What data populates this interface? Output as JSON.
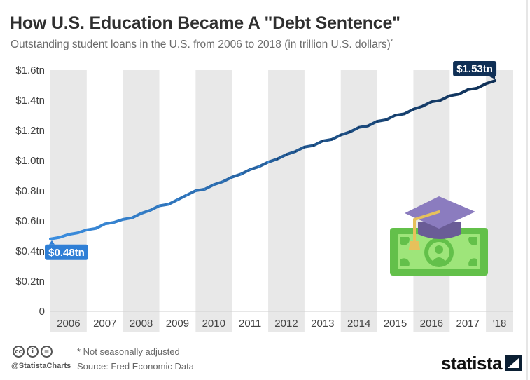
{
  "title": "How U.S. Education Became A \"Debt Sentence\"",
  "subtitle": "Outstanding student loans in the U.S. from 2006 to 2018 (in trillion U.S. dollars)",
  "subtitle_mark": "*",
  "footer": {
    "handle": "@StatistaCharts",
    "note": "* Not seasonally adjusted",
    "source": "Source: Fred Economic Data",
    "brand": "statista",
    "license_icons": [
      "cc",
      "i",
      "="
    ]
  },
  "colors": {
    "line_start": "#3b8ee0",
    "line_end": "#0f2f55",
    "band": "#e8e8e8",
    "label_start_bg": "#2f7fd6",
    "label_end_bg": "#0f2f55",
    "axis_text": "#444444"
  },
  "chart_data": {
    "type": "line",
    "title": "How U.S. Education Became A \"Debt Sentence\"",
    "subtitle": "Outstanding student loans in the U.S. from 2006 to 2018 (in trillion U.S. dollars)",
    "xlabel": "",
    "ylabel": "",
    "ylim": [
      0,
      1.6
    ],
    "yticks": [
      {
        "value": 0,
        "label": "0"
      },
      {
        "value": 0.2,
        "label": "$0.2tn"
      },
      {
        "value": 0.4,
        "label": "$0.4tn"
      },
      {
        "value": 0.6,
        "label": "$0.6tn"
      },
      {
        "value": 0.8,
        "label": "$0.8tn"
      },
      {
        "value": 1.0,
        "label": "$1.0tn"
      },
      {
        "value": 1.2,
        "label": "$1.2tn"
      },
      {
        "value": 1.4,
        "label": "$1.4tn"
      },
      {
        "value": 1.6,
        "label": "$1.6tn"
      }
    ],
    "xlim": [
      2006.0,
      2018.75
    ],
    "categories": [
      "2006",
      "2007",
      "2008",
      "2009",
      "2010",
      "2011",
      "2012",
      "2013",
      "2014",
      "2015",
      "2016",
      "2017",
      "'18"
    ],
    "grid": false,
    "legend": "none",
    "series": [
      {
        "x": [
          2006.0,
          2006.25,
          2006.5,
          2006.75,
          2007.0,
          2007.25,
          2007.5,
          2007.75,
          2008.0,
          2008.25,
          2008.5,
          2008.75,
          2009.0,
          2009.25,
          2009.5,
          2009.75,
          2010.0,
          2010.25,
          2010.5,
          2010.75,
          2011.0,
          2011.25,
          2011.5,
          2011.75,
          2012.0,
          2012.25,
          2012.5,
          2012.75,
          2013.0,
          2013.25,
          2013.5,
          2013.75,
          2014.0,
          2014.25,
          2014.5,
          2014.75,
          2015.0,
          2015.25,
          2015.5,
          2015.75,
          2016.0,
          2016.25,
          2016.5,
          2016.75,
          2017.0,
          2017.25,
          2017.5,
          2017.75,
          2018.0,
          2018.25
        ],
        "values": [
          0.48,
          0.49,
          0.51,
          0.52,
          0.54,
          0.55,
          0.58,
          0.59,
          0.61,
          0.62,
          0.65,
          0.67,
          0.7,
          0.71,
          0.74,
          0.77,
          0.8,
          0.81,
          0.84,
          0.86,
          0.89,
          0.91,
          0.94,
          0.96,
          0.99,
          1.01,
          1.04,
          1.06,
          1.09,
          1.1,
          1.13,
          1.14,
          1.17,
          1.19,
          1.22,
          1.23,
          1.26,
          1.27,
          1.3,
          1.31,
          1.34,
          1.36,
          1.39,
          1.4,
          1.43,
          1.44,
          1.47,
          1.48,
          1.51,
          1.53
        ]
      }
    ],
    "annotations": [
      {
        "label": "$0.48tn",
        "x": 2006.0,
        "value": 0.48
      },
      {
        "label": "$1.53tn",
        "x": 2018.25,
        "value": 1.53
      }
    ]
  }
}
